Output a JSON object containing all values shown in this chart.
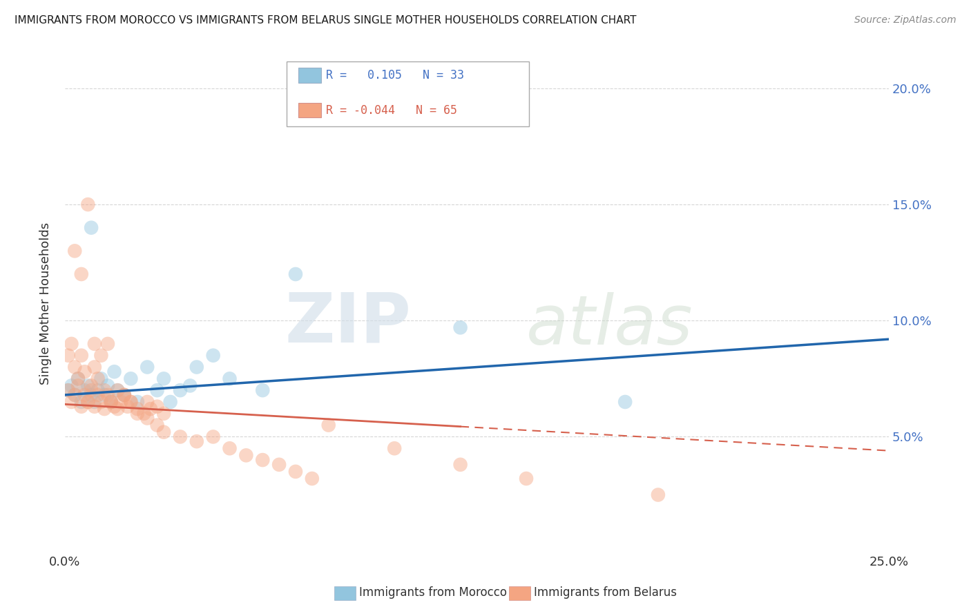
{
  "title": "IMMIGRANTS FROM MOROCCO VS IMMIGRANTS FROM BELARUS SINGLE MOTHER HOUSEHOLDS CORRELATION CHART",
  "source": "Source: ZipAtlas.com",
  "ylabel": "Single Mother Households",
  "xlim": [
    0.0,
    0.25
  ],
  "ylim": [
    0.0,
    0.215
  ],
  "morocco_color": "#92c5de",
  "belarus_color": "#f4a582",
  "morocco_R": 0.105,
  "morocco_N": 33,
  "belarus_R": -0.044,
  "belarus_N": 65,
  "morocco_line_color": "#2166ac",
  "belarus_line_color": "#d6604d",
  "watermark_zip": "ZIP",
  "watermark_atlas": "atlas",
  "morocco_line_start_y": 0.068,
  "morocco_line_end_y": 0.092,
  "belarus_line_start_y": 0.064,
  "belarus_line_end_y": 0.044,
  "morocco_scatter_x": [
    0.001,
    0.002,
    0.003,
    0.004,
    0.005,
    0.006,
    0.007,
    0.008,
    0.009,
    0.01,
    0.011,
    0.012,
    0.013,
    0.014,
    0.015,
    0.016,
    0.018,
    0.02,
    0.022,
    0.025,
    0.028,
    0.03,
    0.032,
    0.035,
    0.038,
    0.04,
    0.045,
    0.05,
    0.06,
    0.07,
    0.12,
    0.17,
    0.008
  ],
  "morocco_scatter_y": [
    0.07,
    0.072,
    0.068,
    0.075,
    0.065,
    0.07,
    0.072,
    0.068,
    0.065,
    0.07,
    0.075,
    0.068,
    0.072,
    0.065,
    0.078,
    0.07,
    0.068,
    0.075,
    0.065,
    0.08,
    0.07,
    0.075,
    0.065,
    0.07,
    0.072,
    0.08,
    0.085,
    0.075,
    0.07,
    0.12,
    0.097,
    0.065,
    0.14
  ],
  "belarus_scatter_x": [
    0.001,
    0.002,
    0.003,
    0.004,
    0.005,
    0.006,
    0.007,
    0.008,
    0.009,
    0.01,
    0.011,
    0.012,
    0.013,
    0.014,
    0.015,
    0.016,
    0.017,
    0.018,
    0.019,
    0.02,
    0.022,
    0.024,
    0.025,
    0.026,
    0.028,
    0.03,
    0.001,
    0.002,
    0.003,
    0.004,
    0.005,
    0.006,
    0.007,
    0.008,
    0.009,
    0.01,
    0.012,
    0.014,
    0.016,
    0.018,
    0.02,
    0.022,
    0.025,
    0.028,
    0.03,
    0.035,
    0.04,
    0.045,
    0.05,
    0.055,
    0.06,
    0.065,
    0.07,
    0.075,
    0.08,
    0.1,
    0.12,
    0.14,
    0.18,
    0.003,
    0.005,
    0.007,
    0.009,
    0.011,
    0.013
  ],
  "belarus_scatter_y": [
    0.07,
    0.065,
    0.068,
    0.072,
    0.063,
    0.068,
    0.065,
    0.07,
    0.063,
    0.068,
    0.065,
    0.062,
    0.068,
    0.065,
    0.063,
    0.07,
    0.065,
    0.068,
    0.063,
    0.065,
    0.062,
    0.06,
    0.065,
    0.062,
    0.063,
    0.06,
    0.085,
    0.09,
    0.08,
    0.075,
    0.085,
    0.078,
    0.065,
    0.072,
    0.08,
    0.075,
    0.07,
    0.065,
    0.062,
    0.068,
    0.065,
    0.06,
    0.058,
    0.055,
    0.052,
    0.05,
    0.048,
    0.05,
    0.045,
    0.042,
    0.04,
    0.038,
    0.035,
    0.032,
    0.055,
    0.045,
    0.038,
    0.032,
    0.025,
    0.13,
    0.12,
    0.15,
    0.09,
    0.085,
    0.09
  ]
}
